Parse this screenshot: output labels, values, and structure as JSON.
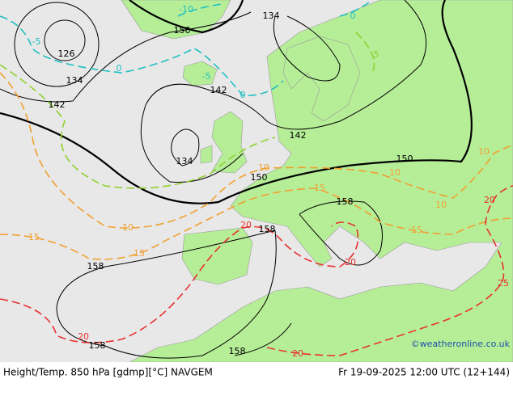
{
  "footer": {
    "left": "Height/Temp. 850 hPa [gdmp][°C] NAVGEM",
    "right": "Fr 19-09-2025 12:00 UTC (12+144)"
  },
  "credit": "©weatheronline.co.uk",
  "height_labels": [
    "126",
    "134",
    "142",
    "150",
    "134",
    "142",
    "142",
    "134",
    "150",
    "150",
    "158",
    "158",
    "158",
    "158",
    "158"
  ],
  "temp_labels": [
    "-10",
    "-5",
    "0",
    "0",
    "0",
    "-5",
    "5",
    "10",
    "10",
    "15",
    "10",
    "10",
    "15",
    "15",
    "15",
    "10",
    "20",
    "20",
    "20",
    "20",
    "20",
    "25"
  ]
}
